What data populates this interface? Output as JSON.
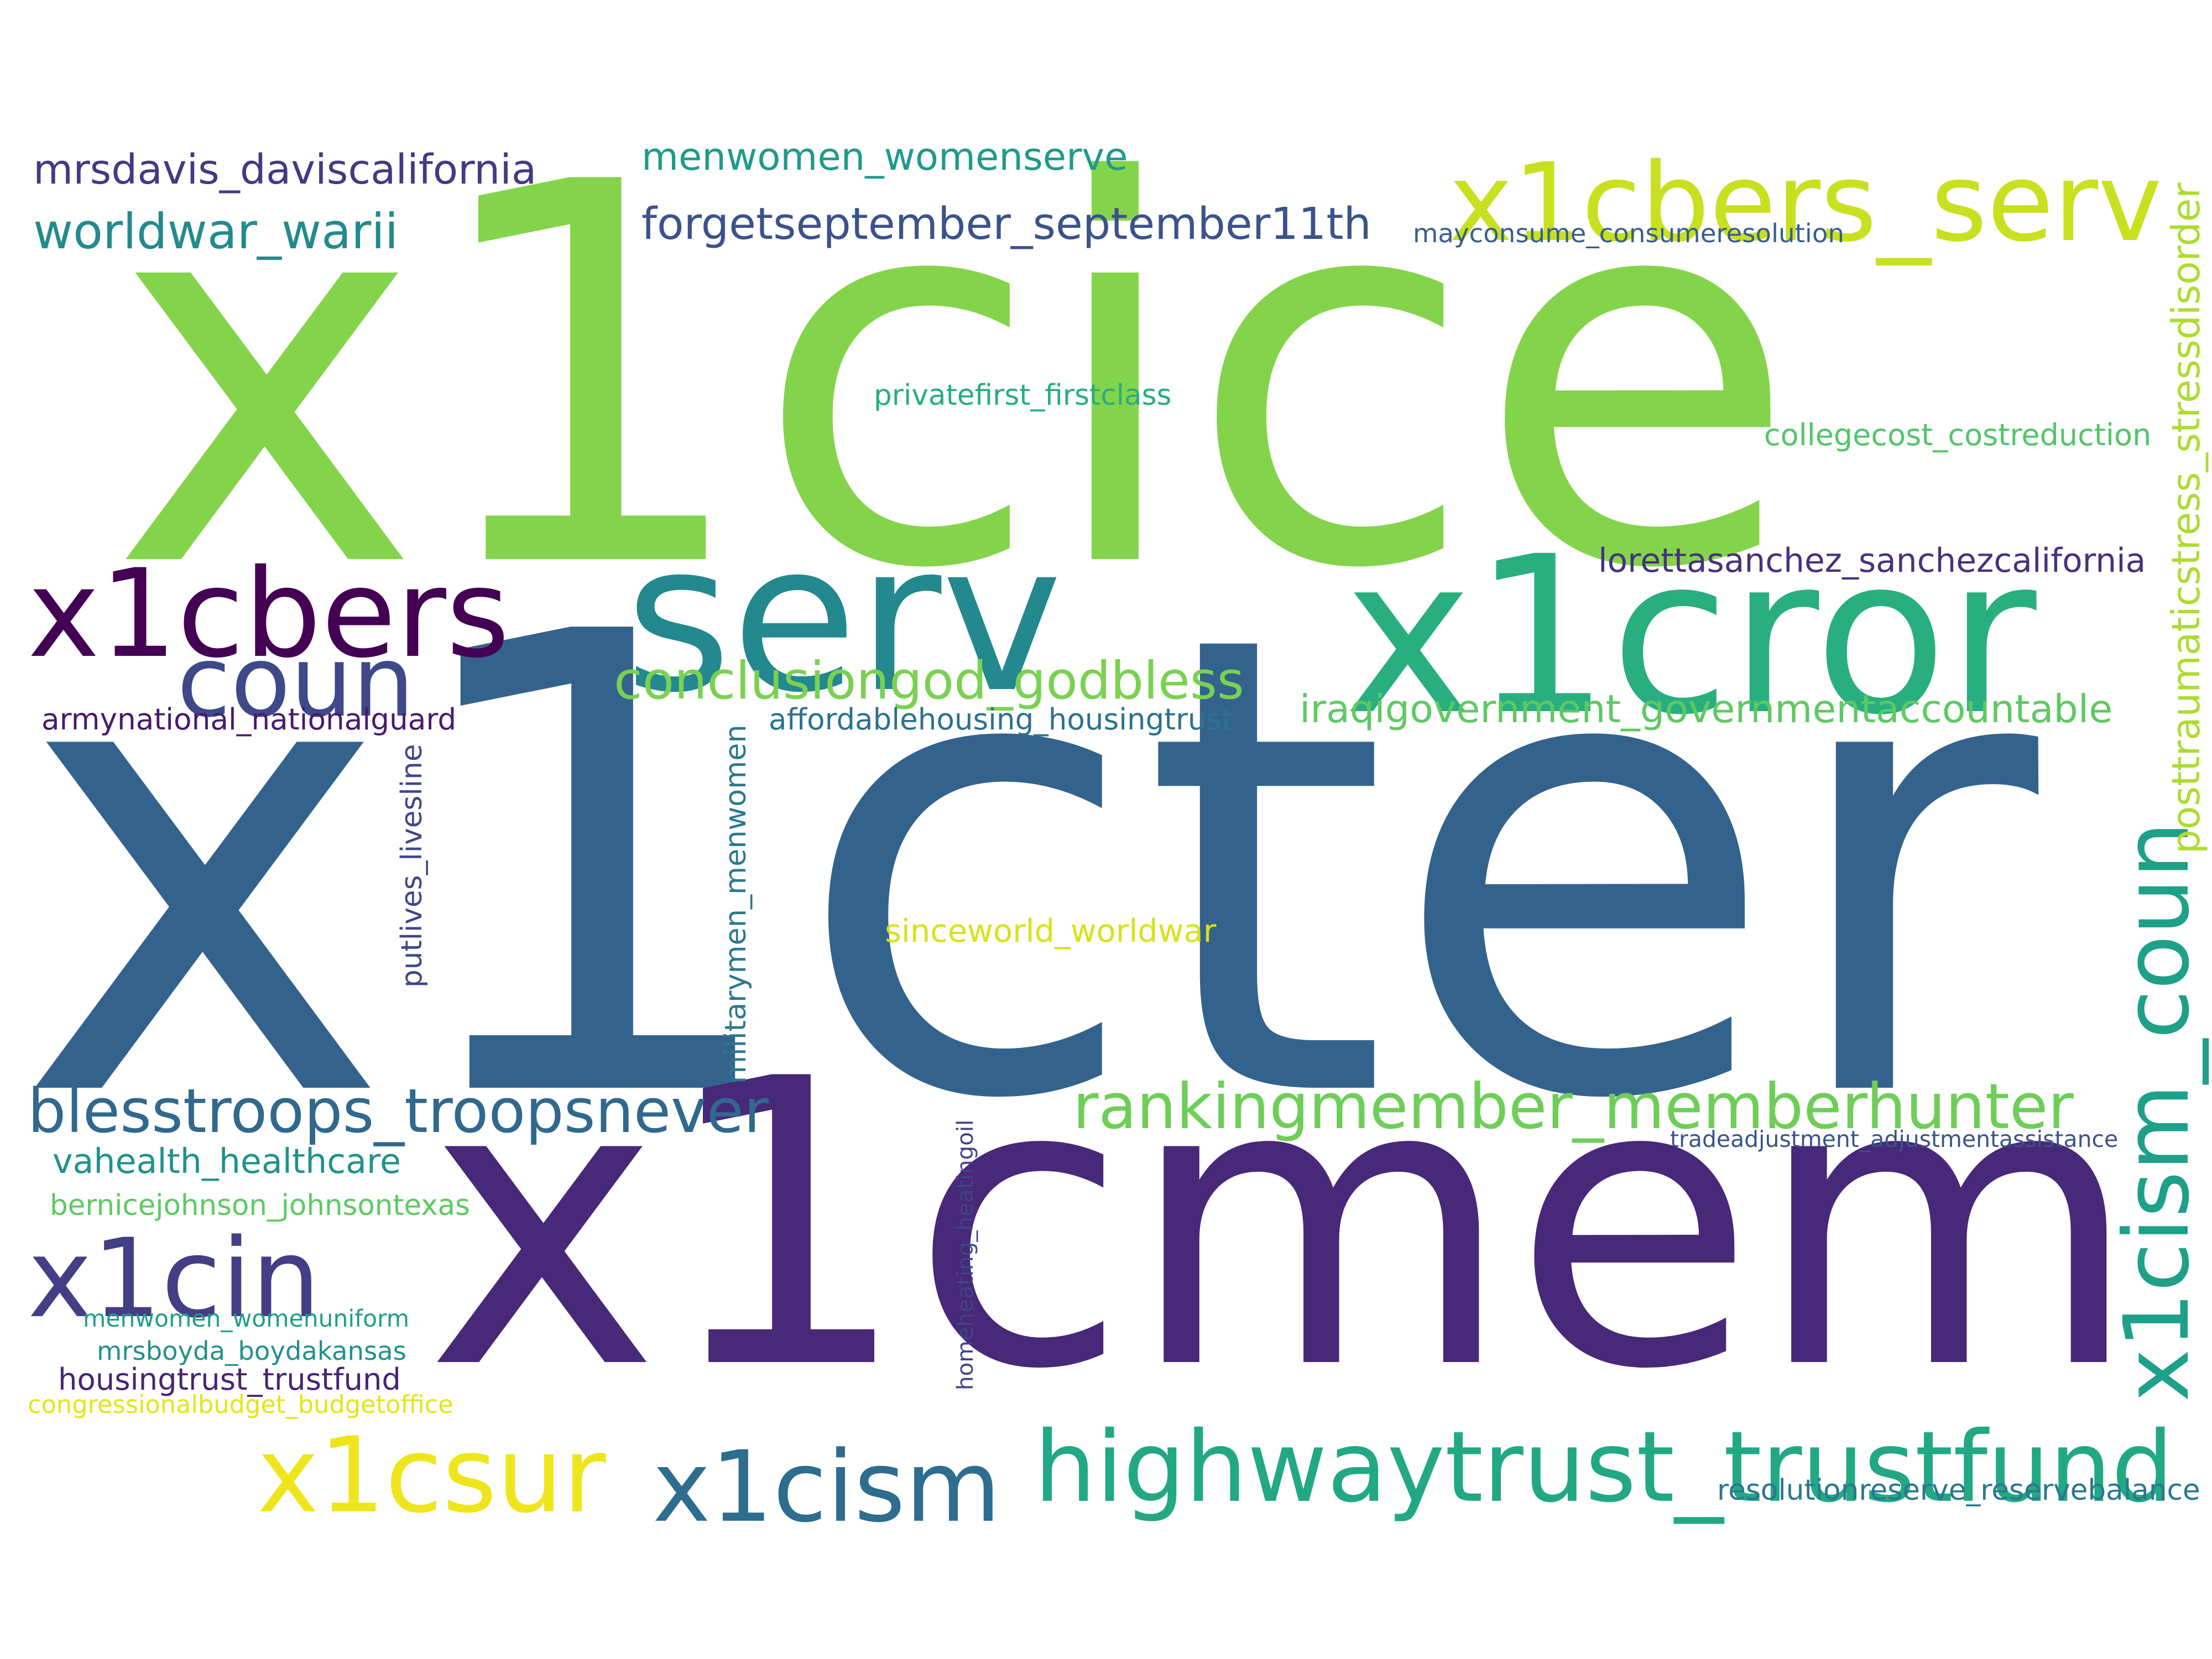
{
  "words": [
    {
      "text": "x1cice",
      "color": "#84d44b"
    },
    {
      "text": "x1cter",
      "color": "#33638d"
    },
    {
      "text": "x1cmem",
      "color": "#482878"
    },
    {
      "text": "x1cror",
      "color": "#29af7f"
    },
    {
      "text": "serv",
      "color": "#23898e"
    },
    {
      "text": "x1cbers",
      "color": "#440154"
    },
    {
      "text": "coun",
      "color": "#3e4989"
    },
    {
      "text": "x1cbers_serv",
      "color": "#c8e020"
    },
    {
      "text": "x1cism_coun",
      "color": "#1fa088"
    },
    {
      "text": "highwaytrust_trustfund",
      "color": "#22a884"
    },
    {
      "text": "x1cin",
      "color": "#433e85"
    },
    {
      "text": "x1csur",
      "color": "#efe51c"
    },
    {
      "text": "x1cism",
      "color": "#2e6d8e"
    },
    {
      "text": "rankingmember_memberhunter",
      "color": "#6ece58"
    },
    {
      "text": "blesstroops_troopsnever",
      "color": "#31688e"
    },
    {
      "text": "conclusiongod_godbless",
      "color": "#7ad151"
    },
    {
      "text": "posttraumaticstress_stressdisorder",
      "color": "#addc30"
    },
    {
      "text": "forgetseptember_september11th",
      "color": "#3b528b"
    },
    {
      "text": "menwomen_womenserve",
      "color": "#1e9b8a"
    },
    {
      "text": "worldwar_warii",
      "color": "#238a8d"
    },
    {
      "text": "mrsdavis_daviscalifornia",
      "color": "#443983"
    },
    {
      "text": "iraqigovernment_governmentaccountable",
      "color": "#5ec962"
    },
    {
      "text": "lorettasanchez_sanchezcalifornia",
      "color": "#46327e"
    },
    {
      "text": "vahealth_healthcare",
      "color": "#20928c"
    },
    {
      "text": "armynational_nationalguard",
      "color": "#481b6d"
    },
    {
      "text": "affordablehousing_housingtrust",
      "color": "#2c728e"
    },
    {
      "text": "militarymen_menwomen",
      "color": "#2a788e"
    },
    {
      "text": "putlives_livesline",
      "color": "#3f4788"
    },
    {
      "text": "sinceworld_worldwar",
      "color": "#d8e219"
    },
    {
      "text": "collegecost_costreduction",
      "color": "#52c569"
    },
    {
      "text": "mayconsume_consumeresolution",
      "color": "#355f8d"
    },
    {
      "text": "privatefirst_firstclass",
      "color": "#27ad81"
    },
    {
      "text": "bernicejohnson_johnsontexas",
      "color": "#5ec962"
    },
    {
      "text": "menwomen_womenuniform",
      "color": "#1f9e89"
    },
    {
      "text": "mrsboyda_boydakansas",
      "color": "#21918c"
    },
    {
      "text": "housingtrust_trustfund",
      "color": "#482475"
    },
    {
      "text": "congressionalbudget_budgetoffice",
      "color": "#e5e419"
    },
    {
      "text": "homeheating_heatingoil",
      "color": "#414487"
    },
    {
      "text": "tradeadjustment_adjustmentassistance",
      "color": "#3b528b"
    },
    {
      "text": "resolutionreserve_reservebalance",
      "color": "#2a788e"
    }
  ]
}
